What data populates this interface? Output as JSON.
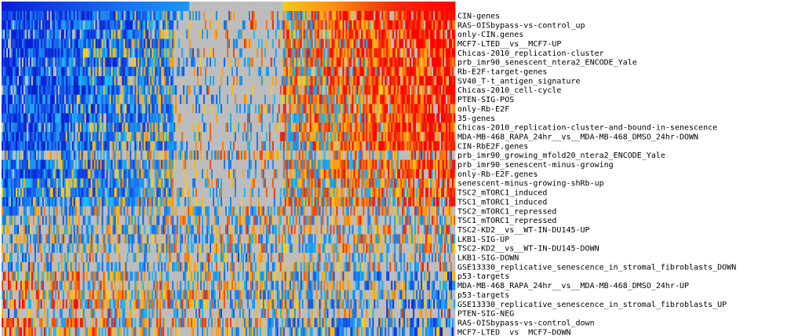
{
  "chart_data": {
    "type": "heatmap",
    "title": "",
    "xlabel": "",
    "ylabel": "",
    "legend": "none",
    "grid": false,
    "column_count": 290,
    "value_range": [
      -1,
      1
    ],
    "missing_color": "#bdbdbd",
    "colormap": [
      "#0a1fd6",
      "#1a73f0",
      "#1cc1f2",
      "#bdbdbd",
      "#f7d21a",
      "#fa8c12",
      "#f02a0a",
      "#ff0000"
    ],
    "column_groups": [
      {
        "label": "",
        "range": [
          0,
          120
        ],
        "value": -0.8
      },
      {
        "label": "",
        "range": [
          120,
          180
        ],
        "value": 0.0
      },
      {
        "label": "",
        "range": [
          180,
          290
        ],
        "value": 0.75
      }
    ],
    "rows": [
      {
        "label": "CIN-genes",
        "pattern": "gradient",
        "strength": 1.0
      },
      {
        "label": "RAS-OISbypass-vs-control_up",
        "pattern": "gradient",
        "strength": 0.95
      },
      {
        "label": "only-CIN.genes",
        "pattern": "gradient",
        "strength": 0.95
      },
      {
        "label": "MCF7-LTED__vs__MCF7-UP",
        "pattern": "gradient",
        "strength": 0.85
      },
      {
        "label": "Chicas-2010_replication-cluster",
        "pattern": "gradient",
        "strength": 0.85
      },
      {
        "label": "prb_imr90_senescent_ntera2_ENCODE_Yale",
        "pattern": "gradient",
        "strength": 0.8
      },
      {
        "label": "Rb-E2F-target-genes",
        "pattern": "gradient",
        "strength": 0.85
      },
      {
        "label": "SV40_T-t_antigen_signature",
        "pattern": "gradient",
        "strength": 0.85
      },
      {
        "label": "Chicas-2010_cell-cycle",
        "pattern": "gradient",
        "strength": 0.85
      },
      {
        "label": "PTEN-SIG-POS",
        "pattern": "gradient",
        "strength": 0.8
      },
      {
        "label": "only-Rb-E2F",
        "pattern": "gradient",
        "strength": 0.8
      },
      {
        "label": "35-genes",
        "pattern": "gradient",
        "strength": 0.8
      },
      {
        "label": "Chicas-2010_replication-cluster-and-bound-in-senescence",
        "pattern": "gradient",
        "strength": 0.75
      },
      {
        "label": "MDA-MB-468_RAPA_24hr__vs__MDA-MB-468_DMSO_24hr-DOWN",
        "pattern": "gradient",
        "strength": 0.75
      },
      {
        "label": "CIN-RbE2F.genes",
        "pattern": "gradient",
        "strength": 0.8
      },
      {
        "label": "prb_imr90_growing_mfold20_ntera2_ENCODE_Yale",
        "pattern": "mixed",
        "strength": 0.5
      },
      {
        "label": "prb_imr90_senescent-minus-growing",
        "pattern": "gradient",
        "strength": 0.55
      },
      {
        "label": "only-Rb-E2F.genes",
        "pattern": "gradient",
        "strength": 0.6
      },
      {
        "label": "senescent-minus-growing-shRb-up",
        "pattern": "gradient",
        "strength": 0.45
      },
      {
        "label": "TSC2_mTORC1_induced",
        "pattern": "gradient",
        "strength": 0.5
      },
      {
        "label": "TSC1_mTORC1_induced",
        "pattern": "gradient",
        "strength": 0.45
      },
      {
        "label": "TSC2_mTORC1_repressed",
        "pattern": "mixed",
        "strength": 0.35
      },
      {
        "label": "TSC1_mTORC1_repressed",
        "pattern": "mixed",
        "strength": 0.3
      },
      {
        "label": "TSC2-KD2__vs__WT-IN-DU145-UP",
        "pattern": "mixed",
        "strength": 0.35
      },
      {
        "label": "LKB1-SIG-UP",
        "pattern": "mixed",
        "strength": 0.3
      },
      {
        "label": "TSC2-KD2__vs__WT-IN-DU145-DOWN",
        "pattern": "mixed",
        "strength": 0.3
      },
      {
        "label": "LKB1-SIG-DOWN",
        "pattern": "sparse",
        "strength": 0.2
      },
      {
        "label": "GSE13330_replicative_senescence_in_stromal_fibroblasts_DOWN",
        "pattern": "mixed",
        "strength": 0.45
      },
      {
        "label": "p53-targets",
        "pattern": "reverse",
        "strength": 0.35
      },
      {
        "label": "MDA-MB-468_RAPA_24hr__vs__MDA-MB-468_DMSO_24hr-UP",
        "pattern": "reverse",
        "strength": 0.35
      },
      {
        "label": "p53-targets",
        "pattern": "reverse",
        "strength": 0.3
      },
      {
        "label": "GSE13330_replicative_senescence_in_stromal_fibroblasts_UP",
        "pattern": "reverse",
        "strength": 0.5
      },
      {
        "label": "PTEN-SIG-NEG",
        "pattern": "sparse",
        "strength": 0.3
      },
      {
        "label": "RAS-OISbypass-vs-control_down",
        "pattern": "reverse",
        "strength": 0.45
      },
      {
        "label": "MCF7-LTED__vs__MCF7-DOWN",
        "pattern": "reverse",
        "strength": 0.5
      }
    ]
  }
}
